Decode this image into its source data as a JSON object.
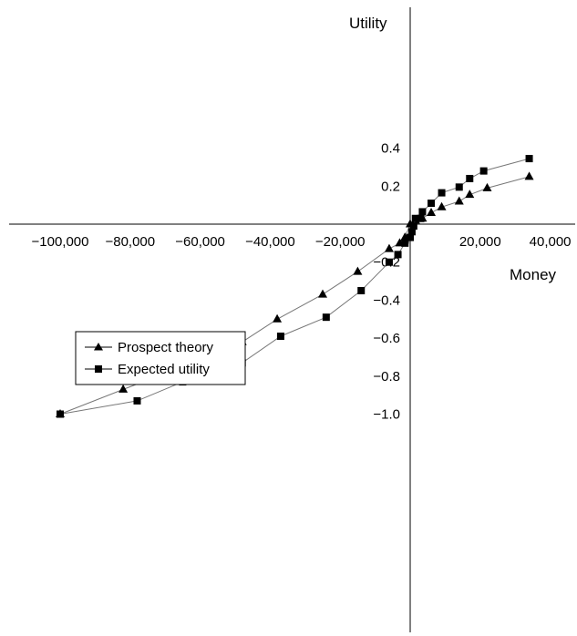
{
  "chart_data": {
    "type": "line",
    "title": "",
    "xlabel": "Money",
    "ylabel": "Utility",
    "xlim": [
      -100000,
      40000
    ],
    "ylim": [
      -1.0,
      0.45
    ],
    "grid": false,
    "legend_position": "middle-left",
    "x_ticks": [
      {
        "value": -100000,
        "label": "−100,000"
      },
      {
        "value": -80000,
        "label": "−80,000"
      },
      {
        "value": -60000,
        "label": "−60,000"
      },
      {
        "value": -40000,
        "label": "−40,000"
      },
      {
        "value": -20000,
        "label": "−20,000"
      },
      {
        "value": 0,
        "label": "0"
      },
      {
        "value": 20000,
        "label": "20,000"
      },
      {
        "value": 40000,
        "label": "40,000"
      }
    ],
    "y_ticks": [
      {
        "value": 0.4,
        "label": "0.4"
      },
      {
        "value": 0.2,
        "label": "0.2"
      },
      {
        "value": -0.2,
        "label": "−0.2"
      },
      {
        "value": -0.4,
        "label": "−0.4"
      },
      {
        "value": -0.6,
        "label": "−0.6"
      },
      {
        "value": -0.8,
        "label": "−0.8"
      },
      {
        "value": -1.0,
        "label": "−1.0"
      }
    ],
    "series": [
      {
        "name": "Prospect theory",
        "marker": "triangle",
        "color": "#000000",
        "line_color": "#777777",
        "points": [
          {
            "x": -100000,
            "y": -1.0
          },
          {
            "x": -82000,
            "y": -0.87
          },
          {
            "x": -65000,
            "y": -0.75
          },
          {
            "x": -48000,
            "y": -0.62
          },
          {
            "x": -38000,
            "y": -0.5
          },
          {
            "x": -25000,
            "y": -0.37
          },
          {
            "x": -15000,
            "y": -0.25
          },
          {
            "x": -6000,
            "y": -0.13
          },
          {
            "x": -3000,
            "y": -0.1
          },
          {
            "x": -1500,
            "y": -0.07
          },
          {
            "x": 0,
            "y": 0.0
          },
          {
            "x": 1500,
            "y": 0.02
          },
          {
            "x": 3500,
            "y": 0.03
          },
          {
            "x": 6000,
            "y": 0.06
          },
          {
            "x": 9000,
            "y": 0.09
          },
          {
            "x": 14000,
            "y": 0.12
          },
          {
            "x": 17000,
            "y": 0.155
          },
          {
            "x": 22000,
            "y": 0.19
          },
          {
            "x": 34000,
            "y": 0.25
          }
        ]
      },
      {
        "name": "Expected utility",
        "marker": "square",
        "color": "#000000",
        "line_color": "#777777",
        "points": [
          {
            "x": -100000,
            "y": -1.0
          },
          {
            "x": -78000,
            "y": -0.93
          },
          {
            "x": -65000,
            "y": -0.83
          },
          {
            "x": -48000,
            "y": -0.73
          },
          {
            "x": -37000,
            "y": -0.59
          },
          {
            "x": -24000,
            "y": -0.49
          },
          {
            "x": -14000,
            "y": -0.35
          },
          {
            "x": -6000,
            "y": -0.2
          },
          {
            "x": -3500,
            "y": -0.16
          },
          {
            "x": -1500,
            "y": -0.1
          },
          {
            "x": 0,
            "y": -0.07
          },
          {
            "x": 500,
            "y": -0.04
          },
          {
            "x": 1000,
            "y": -0.01
          },
          {
            "x": 1500,
            "y": 0.03
          },
          {
            "x": 3000,
            "y": 0.03
          },
          {
            "x": 3500,
            "y": 0.065
          },
          {
            "x": 6000,
            "y": 0.11
          },
          {
            "x": 9000,
            "y": 0.165
          },
          {
            "x": 14000,
            "y": 0.195
          },
          {
            "x": 17000,
            "y": 0.24
          },
          {
            "x": 21000,
            "y": 0.28
          },
          {
            "x": 34000,
            "y": 0.345
          }
        ]
      }
    ]
  }
}
